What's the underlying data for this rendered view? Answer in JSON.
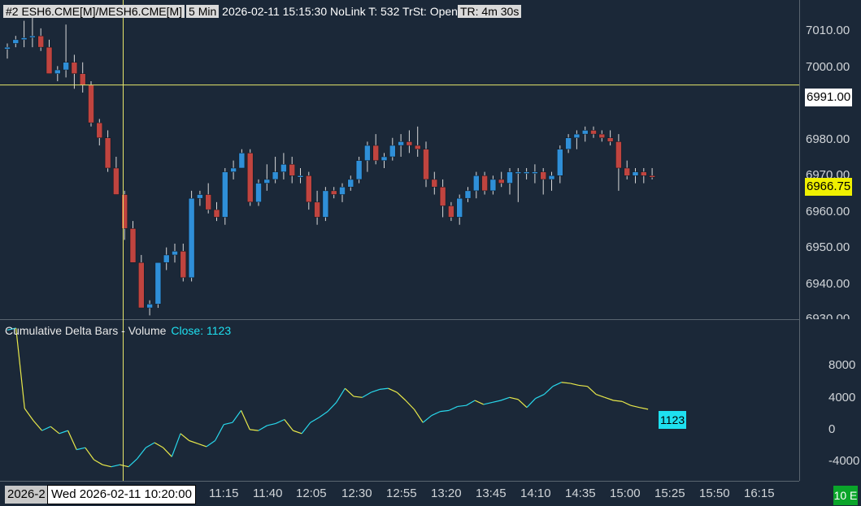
{
  "header": {
    "chart_id": "#2 ESH6.CME[M]/MESH6.CME[M]",
    "interval": "5 Min",
    "status": "2026-02-11 15:15:30 NoLink T: 532 TrSt: Open",
    "timer": "TR: 4m 30s"
  },
  "price_axis": {
    "ticks": [
      "7010.00",
      "7000.00",
      "6980.00",
      "6970.00",
      "6960.00",
      "6950.00",
      "6940.00",
      "6930.00"
    ],
    "crosshair_price": "6991.00",
    "last_price": "6966.75"
  },
  "subgraph": {
    "title": "Cumulative Delta Bars - Volume",
    "close_label": "Close: 1123",
    "close_value": "1123",
    "ticks": [
      "8000",
      "4000",
      "0",
      "-4000"
    ]
  },
  "time_axis": {
    "left_date": "2026-2",
    "crosshair_time": "Wed 2026-02-11 10:20:00",
    "ticks": [
      "11:15",
      "11:40",
      "12:05",
      "12:30",
      "12:55",
      "13:20",
      "13:45",
      "14:10",
      "14:35",
      "15:00",
      "15:25",
      "15:50",
      "16:15"
    ]
  },
  "badge": "10 E",
  "colors": {
    "background": "#1b2838",
    "up_candle": "#2f8fd8",
    "down_candle": "#c0443f",
    "crosshair": "#e6e66a",
    "delta_up": "#28d8ec",
    "delta_down": "#e8e84a"
  },
  "chart_data": [
    {
      "type": "candlestick",
      "interval": "5 Min",
      "ylim": [
        6930,
        7015
      ],
      "yticks": [
        6930,
        6940,
        6950,
        6960,
        6970,
        6980,
        7000,
        7010
      ],
      "crosshair": {
        "time": "10:20",
        "price": 6991.0
      },
      "last_price": 6966.75,
      "candles": [
        {
          "o": 7000.5,
          "h": 7002,
          "l": 6998,
          "c": 7001
        },
        {
          "o": 7002,
          "h": 7004,
          "l": 7001,
          "c": 7003
        },
        {
          "o": 7003,
          "h": 7008,
          "l": 7001,
          "c": 7003.5
        },
        {
          "o": 7004,
          "h": 7012,
          "l": 7001,
          "c": 7004
        },
        {
          "o": 7004,
          "h": 7006,
          "l": 7000,
          "c": 7001
        },
        {
          "o": 7001,
          "h": 7003,
          "l": 6994,
          "c": 6994
        },
        {
          "o": 6994,
          "h": 6996,
          "l": 6992,
          "c": 6995
        },
        {
          "o": 6995,
          "h": 7007,
          "l": 6993,
          "c": 6997
        },
        {
          "o": 6997,
          "h": 6999,
          "l": 6990,
          "c": 6994
        },
        {
          "o": 6994,
          "h": 6997,
          "l": 6989,
          "c": 6991
        },
        {
          "o": 6991,
          "h": 6992,
          "l": 6980,
          "c": 6981
        },
        {
          "o": 6981,
          "h": 6982,
          "l": 6975,
          "c": 6977
        },
        {
          "o": 6977,
          "h": 6979,
          "l": 6968,
          "c": 6969
        },
        {
          "o": 6969,
          "h": 6972,
          "l": 6962,
          "c": 6962
        },
        {
          "o": 6962,
          "h": 6963,
          "l": 6950,
          "c": 6953
        },
        {
          "o": 6953,
          "h": 6955,
          "l": 6944,
          "c": 6944
        },
        {
          "o": 6944,
          "h": 6946,
          "l": 6932,
          "c": 6932
        },
        {
          "o": 6932,
          "h": 6934,
          "l": 6930,
          "c": 6933
        },
        {
          "o": 6933,
          "h": 6944,
          "l": 6932,
          "c": 6944
        },
        {
          "o": 6944,
          "h": 6948,
          "l": 6942,
          "c": 6946
        },
        {
          "o": 6946,
          "h": 6949,
          "l": 6944,
          "c": 6947
        },
        {
          "o": 6947,
          "h": 6949,
          "l": 6939,
          "c": 6940
        },
        {
          "o": 6940,
          "h": 6963,
          "l": 6939,
          "c": 6961
        },
        {
          "o": 6961,
          "h": 6963,
          "l": 6959,
          "c": 6962
        },
        {
          "o": 6962,
          "h": 6965,
          "l": 6957,
          "c": 6958
        },
        {
          "o": 6958,
          "h": 6960,
          "l": 6955,
          "c": 6956
        },
        {
          "o": 6956,
          "h": 6969,
          "l": 6954,
          "c": 6968
        },
        {
          "o": 6968,
          "h": 6971,
          "l": 6966,
          "c": 6969
        },
        {
          "o": 6969,
          "h": 6974,
          "l": 6969,
          "c": 6973
        },
        {
          "o": 6973,
          "h": 6974,
          "l": 6959,
          "c": 6960
        },
        {
          "o": 6960,
          "h": 6966,
          "l": 6959,
          "c": 6965
        },
        {
          "o": 6965,
          "h": 6970,
          "l": 6963,
          "c": 6966
        },
        {
          "o": 6966,
          "h": 6972,
          "l": 6965,
          "c": 6968
        },
        {
          "o": 6968,
          "h": 6973,
          "l": 6966,
          "c": 6970
        },
        {
          "o": 6970,
          "h": 6972,
          "l": 6965,
          "c": 6967
        },
        {
          "o": 6967,
          "h": 6969,
          "l": 6965,
          "c": 6967
        },
        {
          "o": 6967,
          "h": 6968,
          "l": 6958,
          "c": 6960
        },
        {
          "o": 6960,
          "h": 6963,
          "l": 6954,
          "c": 6956
        },
        {
          "o": 6956,
          "h": 6964,
          "l": 6955,
          "c": 6963
        },
        {
          "o": 6963,
          "h": 6964,
          "l": 6961,
          "c": 6962
        },
        {
          "o": 6962,
          "h": 6965,
          "l": 6960,
          "c": 6964
        },
        {
          "o": 6964,
          "h": 6967,
          "l": 6963,
          "c": 6966
        },
        {
          "o": 6966,
          "h": 6972,
          "l": 6965,
          "c": 6971
        },
        {
          "o": 6971,
          "h": 6976,
          "l": 6968,
          "c": 6975
        },
        {
          "o": 6975,
          "h": 6978,
          "l": 6970,
          "c": 6971
        },
        {
          "o": 6971,
          "h": 6973,
          "l": 6969,
          "c": 6972
        },
        {
          "o": 6972,
          "h": 6977,
          "l": 6971,
          "c": 6975
        },
        {
          "o": 6975,
          "h": 6978,
          "l": 6972,
          "c": 6976
        },
        {
          "o": 6976,
          "h": 6979,
          "l": 6973,
          "c": 6975
        },
        {
          "o": 6975,
          "h": 6980,
          "l": 6972,
          "c": 6974
        },
        {
          "o": 6974,
          "h": 6976,
          "l": 6964,
          "c": 6966
        },
        {
          "o": 6966,
          "h": 6968,
          "l": 6962,
          "c": 6964
        },
        {
          "o": 6964,
          "h": 6966,
          "l": 6956,
          "c": 6959
        },
        {
          "o": 6959,
          "h": 6960,
          "l": 6955,
          "c": 6956
        },
        {
          "o": 6956,
          "h": 6962,
          "l": 6954,
          "c": 6961
        },
        {
          "o": 6961,
          "h": 6964,
          "l": 6960,
          "c": 6963
        },
        {
          "o": 6963,
          "h": 6968,
          "l": 6961,
          "c": 6967
        },
        {
          "o": 6967,
          "h": 6968,
          "l": 6962,
          "c": 6963
        },
        {
          "o": 6963,
          "h": 6967,
          "l": 6962,
          "c": 6966
        },
        {
          "o": 6966,
          "h": 6968,
          "l": 6964,
          "c": 6965
        },
        {
          "o": 6965,
          "h": 6969,
          "l": 6962,
          "c": 6968
        },
        {
          "o": 6968,
          "h": 6969,
          "l": 6960,
          "c": 6968
        },
        {
          "o": 6968,
          "h": 6969,
          "l": 6966,
          "c": 6968
        },
        {
          "o": 6968,
          "h": 6970,
          "l": 6965,
          "c": 6968
        },
        {
          "o": 6968,
          "h": 6969,
          "l": 6962,
          "c": 6966
        },
        {
          "o": 6966,
          "h": 6968,
          "l": 6963,
          "c": 6967
        },
        {
          "o": 6967,
          "h": 6975,
          "l": 6965,
          "c": 6974
        },
        {
          "o": 6974,
          "h": 6978,
          "l": 6973,
          "c": 6977
        },
        {
          "o": 6977,
          "h": 6979,
          "l": 6974,
          "c": 6978
        },
        {
          "o": 6978,
          "h": 6980,
          "l": 6976,
          "c": 6979
        },
        {
          "o": 6979,
          "h": 6980,
          "l": 6977,
          "c": 6978
        },
        {
          "o": 6978,
          "h": 6979,
          "l": 6976,
          "c": 6977
        },
        {
          "o": 6977,
          "h": 6979,
          "l": 6975,
          "c": 6976
        },
        {
          "o": 6976,
          "h": 6978,
          "l": 6963,
          "c": 6969
        },
        {
          "o": 6969,
          "h": 6971,
          "l": 6966,
          "c": 6967
        },
        {
          "o": 6967,
          "h": 6969,
          "l": 6965,
          "c": 6968
        },
        {
          "o": 6968,
          "h": 6969,
          "l": 6965,
          "c": 6967
        },
        {
          "o": 6967,
          "h": 6969,
          "l": 6966,
          "c": 6966.75
        }
      ]
    },
    {
      "type": "line",
      "title": "Cumulative Delta Bars - Volume",
      "ylim": [
        -6000,
        10000
      ],
      "yticks": [
        8000,
        4000,
        0,
        -4000
      ],
      "last_value": 1123,
      "values": [
        9000,
        9200,
        1200,
        0,
        -1000,
        -600,
        -1300,
        -1000,
        -2900,
        -2700,
        -3900,
        -4400,
        -4600,
        -4400,
        -4600,
        -3800,
        -2700,
        -2200,
        -2700,
        -3600,
        -1300,
        -2000,
        -2300,
        -2600,
        -2000,
        -400,
        -200,
        1000,
        -900,
        -1000,
        -500,
        -300,
        100,
        -1000,
        -1300,
        -200,
        300,
        900,
        1800,
        3200,
        2400,
        2300,
        2800,
        3100,
        3200,
        2800,
        2000,
        1100,
        -200,
        500,
        900,
        1000,
        1400,
        1500,
        2000,
        1600,
        1800,
        2000,
        2300,
        2100,
        1300,
        2200,
        2600,
        3400,
        3800,
        3700,
        3500,
        3400,
        2600,
        2300,
        2000,
        1900,
        1500,
        1300,
        1123
      ]
    }
  ]
}
